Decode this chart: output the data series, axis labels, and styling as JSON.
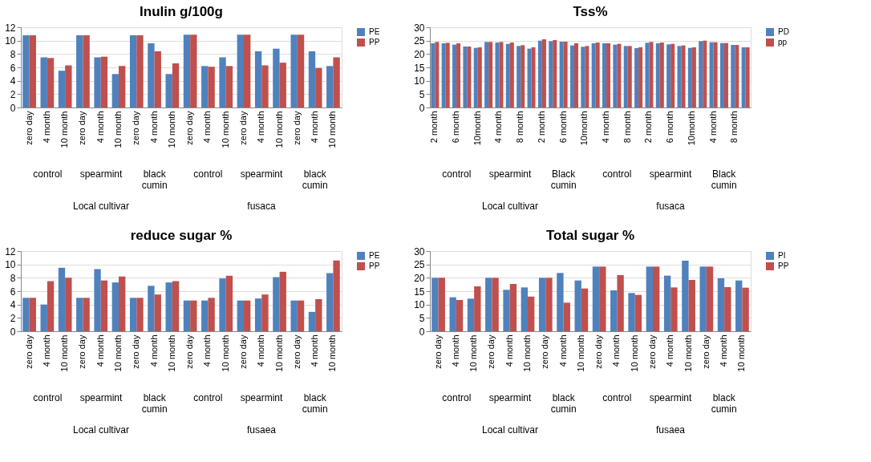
{
  "chart_data": [
    {
      "type": "bar",
      "title": "Inulin g/100g",
      "categories": [
        "zero day",
        "4 month",
        "10 month",
        "zero day",
        "4 month",
        "10 month",
        "zero day",
        "4 month",
        "10 month",
        "zero day",
        "4 month",
        "10 month",
        "zero day",
        "4 month",
        "10 month",
        "zero day",
        "4 month",
        "10 month"
      ],
      "series": [
        {
          "name": "PE",
          "color": "#4f81bd",
          "values": [
            10.8,
            7.5,
            5.5,
            10.8,
            7.5,
            5.0,
            10.8,
            9.6,
            5.0,
            10.9,
            6.2,
            7.5,
            10.9,
            8.4,
            8.8,
            10.9,
            8.4,
            6.2
          ]
        },
        {
          "name": "PP",
          "color": "#c0504d",
          "values": [
            10.8,
            7.4,
            6.3,
            10.8,
            7.6,
            6.2,
            10.8,
            8.4,
            6.6,
            10.9,
            6.1,
            6.2,
            10.9,
            6.3,
            6.7,
            10.9,
            5.9,
            7.5
          ]
        }
      ],
      "ylim": [
        0,
        12
      ],
      "yticks": [
        0,
        2,
        4,
        6,
        8,
        10,
        12
      ],
      "grid": "y",
      "legend": "right",
      "annotations": [
        "control",
        "spearmint",
        "black cumin",
        "control",
        "spearmint",
        "black cumin",
        "Local cultivar",
        "fusaca"
      ]
    },
    {
      "type": "bar",
      "title": "Tss%",
      "categories": [
        "2 month",
        null,
        "6 month",
        null,
        "10month",
        null,
        "4 month",
        null,
        "8 month",
        null,
        "2 month",
        null,
        "6 month",
        null,
        "10month",
        null,
        "4 month",
        null,
        "8 month",
        null,
        "2 month",
        null,
        "6 month",
        null,
        "10month",
        null,
        "4 month",
        null,
        "8 month",
        null
      ],
      "series": [
        {
          "name": "PD",
          "color": "#4f81bd",
          "values": [
            24,
            24,
            23.5,
            22.8,
            22.3,
            24.5,
            24.3,
            23.8,
            23,
            22,
            25,
            24.8,
            24.6,
            23.2,
            22.7,
            24,
            24,
            23.5,
            23,
            22.2,
            24.2,
            24,
            23.6,
            23,
            22.3,
            24.8,
            24.4,
            24.1,
            23.4,
            22.5
          ]
        },
        {
          "name": "pp",
          "color": "#c0504d",
          "values": [
            24.5,
            24.2,
            24,
            22.8,
            22.5,
            24.5,
            24.5,
            24.3,
            23.3,
            22.5,
            25.5,
            25.2,
            24.6,
            24,
            23,
            24.3,
            24,
            23.8,
            23,
            22.5,
            24.5,
            24.3,
            23.8,
            23.2,
            22.5,
            25,
            24.4,
            24.1,
            23.4,
            22.5
          ]
        }
      ],
      "ylim": [
        0,
        30
      ],
      "yticks": [
        0,
        5,
        10,
        15,
        20,
        25,
        30
      ],
      "grid": "y",
      "legend": "right",
      "annotations": [
        "control",
        "spearmint",
        "Black cumin",
        "control",
        "spearmint",
        "Black cumin",
        "Local cultivar",
        "fusaca"
      ]
    },
    {
      "type": "bar",
      "title": "reduce sugar %",
      "categories": [
        "zero day",
        "4 month",
        "10 month",
        "zero day",
        "4 month",
        "10 month",
        "zero day",
        "4 month",
        "10 month",
        "zero day",
        "4 month",
        "10 month",
        "zero day",
        "4 month",
        "10 month",
        "zero day",
        "4 month",
        "10 month"
      ],
      "series": [
        {
          "name": "PE",
          "color": "#4f81bd",
          "values": [
            5,
            4,
            9.5,
            5,
            9.3,
            7.3,
            5,
            6.8,
            7.3,
            4.6,
            4.6,
            7.9,
            4.6,
            4.9,
            8.1,
            4.6,
            2.9,
            8.7
          ]
        },
        {
          "name": "PP",
          "color": "#c0504d",
          "values": [
            5,
            7.5,
            8,
            5,
            7.6,
            8.2,
            5,
            5.5,
            7.5,
            4.6,
            5,
            8.3,
            4.6,
            5.5,
            8.9,
            4.6,
            4.8,
            10.6
          ]
        }
      ],
      "ylim": [
        0,
        12
      ],
      "yticks": [
        0,
        2,
        4,
        6,
        8,
        10,
        12
      ],
      "grid": "y",
      "legend": "right",
      "annotations": [
        "control",
        "spearmint",
        "black cumin",
        "control",
        "spearmint",
        "black cumin",
        "Local cultivar",
        "fusaea"
      ]
    },
    {
      "type": "bar",
      "title": "Total sugar %",
      "categories": [
        "zero day",
        "4 month",
        "10 month",
        "zero day",
        "4 month",
        "10 month",
        "zero day",
        "4 month",
        "10 month",
        "zero day",
        "4 month",
        "10 month",
        "zero day",
        "4 month",
        "10 month",
        "zero day",
        "4 month",
        "10 month"
      ],
      "series": [
        {
          "name": "PI",
          "color": "#4f81bd",
          "values": [
            20,
            12.7,
            12.2,
            20,
            15.5,
            16.4,
            20,
            21.8,
            19,
            24.2,
            15.3,
            14.3,
            24.2,
            20.8,
            26.4,
            24.2,
            19.8,
            19
          ]
        },
        {
          "name": "PP",
          "color": "#c0504d",
          "values": [
            20,
            11.7,
            16.8,
            20,
            17.7,
            13,
            20,
            10.7,
            16,
            24.2,
            21,
            13.6,
            24.2,
            16.4,
            19.2,
            24.2,
            16.5,
            16.3
          ]
        }
      ],
      "ylim": [
        0,
        30
      ],
      "yticks": [
        0,
        5,
        10,
        15,
        20,
        25,
        30
      ],
      "grid": "y",
      "legend": "right",
      "annotations": [
        "control",
        "spearmint",
        "black cumin",
        "control",
        "spearmint",
        "black cumin",
        "Local cultivar",
        "fusaea"
      ]
    }
  ]
}
